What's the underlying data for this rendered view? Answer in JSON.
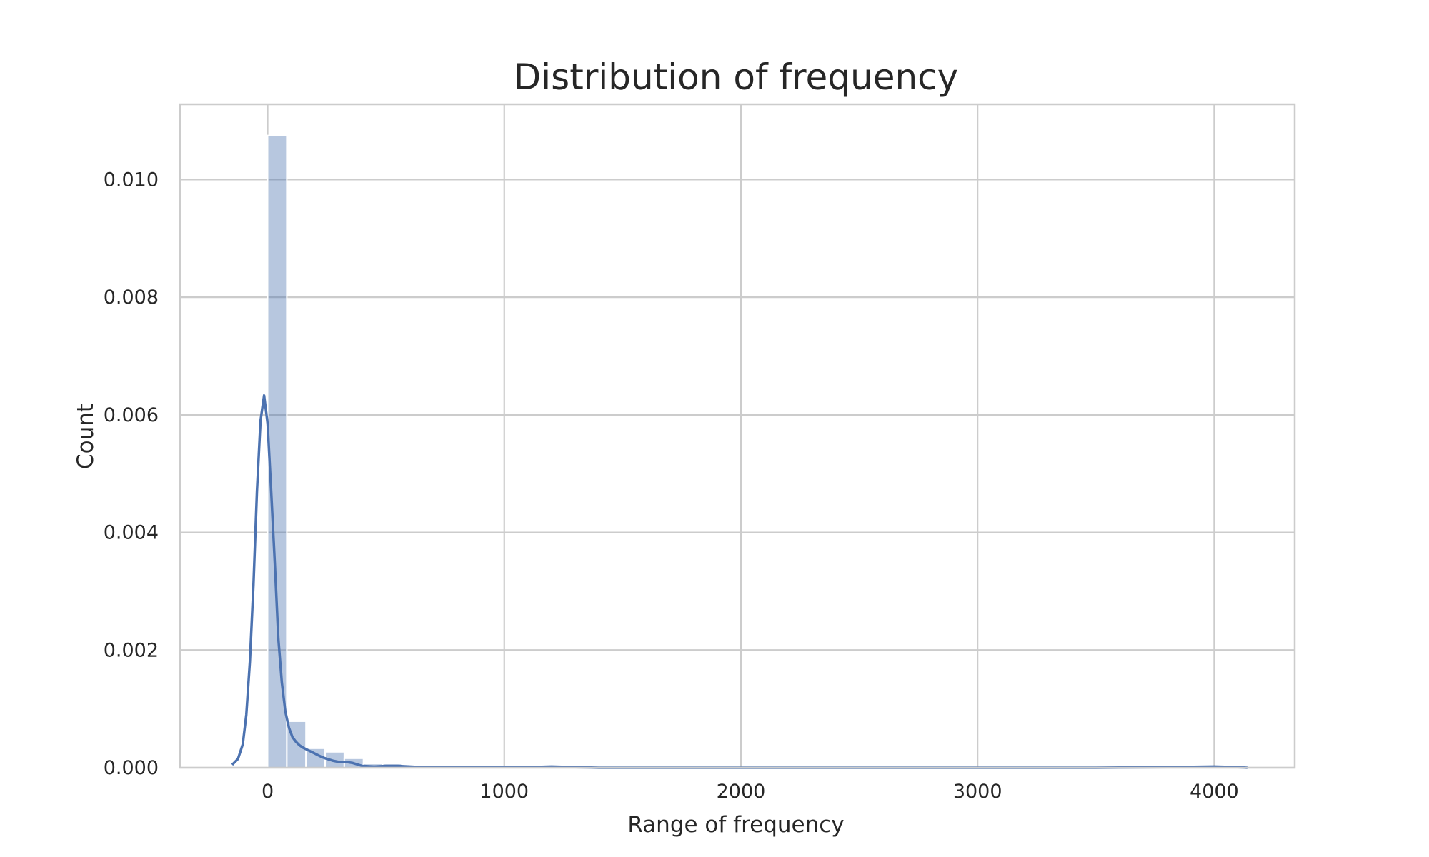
{
  "chart_data": {
    "type": "bar",
    "title": "Distribution of frequency",
    "xlabel": "Range of frequency",
    "ylabel": "Count",
    "xlim": [
      -370,
      4340
    ],
    "ylim": [
      0,
      0.01128
    ],
    "x_ticks": [
      0,
      1000,
      2000,
      3000,
      4000
    ],
    "y_ticks": [
      0.0,
      0.002,
      0.004,
      0.006,
      0.008,
      0.01
    ],
    "x_tick_labels": [
      "0",
      "1000",
      "2000",
      "3000",
      "4000"
    ],
    "y_tick_labels": [
      "0.000",
      "0.002",
      "0.004",
      "0.006",
      "0.008",
      "0.010"
    ],
    "grid": true,
    "histogram": {
      "bin_width": 81,
      "bin_start": 0,
      "values": [
        0.01075,
        0.00079,
        0.00033,
        0.00027,
        0.00016,
        7e-05,
        7e-05,
        3e-05,
        3e-05,
        2e-05,
        2e-05,
        1e-05,
        1e-05,
        1e-05,
        1e-05,
        1e-05
      ]
    },
    "kde": {
      "x": [
        -150,
        -125,
        -105,
        -90,
        -75,
        -60,
        -45,
        -30,
        -15,
        0,
        15,
        30,
        45,
        60,
        75,
        90,
        105,
        120,
        135,
        150,
        170,
        190,
        210,
        230,
        250,
        275,
        300,
        330,
        360,
        400,
        450,
        500,
        550,
        600,
        650,
        700,
        800,
        900,
        1000,
        1100,
        1200,
        1300,
        1400,
        1600,
        1800,
        2000,
        2500,
        3000,
        3500,
        3800,
        4000,
        4100,
        4140
      ],
      "y": [
        5e-05,
        0.00015,
        0.0004,
        0.0009,
        0.0018,
        0.0031,
        0.0047,
        0.0059,
        0.00633,
        0.00585,
        0.0047,
        0.0035,
        0.0022,
        0.00145,
        0.00095,
        0.00068,
        0.00052,
        0.00044,
        0.00038,
        0.00034,
        0.0003,
        0.00026,
        0.00022,
        0.00018,
        0.00015,
        0.00012,
        0.0001,
        0.0001,
        8e-05,
        3e-05,
        2e-05,
        3e-05,
        3e-05,
        2e-05,
        1e-05,
        1e-05,
        1e-05,
        1e-05,
        1e-05,
        1e-05,
        2e-05,
        1e-05,
        0.0,
        0.0,
        0.0,
        0.0,
        0.0,
        0.0,
        0.0,
        1e-05,
        2e-05,
        1e-05,
        0.0
      ]
    },
    "colors": {
      "series": "#4c72b0",
      "grid": "#cccccc",
      "text": "#262626"
    }
  }
}
